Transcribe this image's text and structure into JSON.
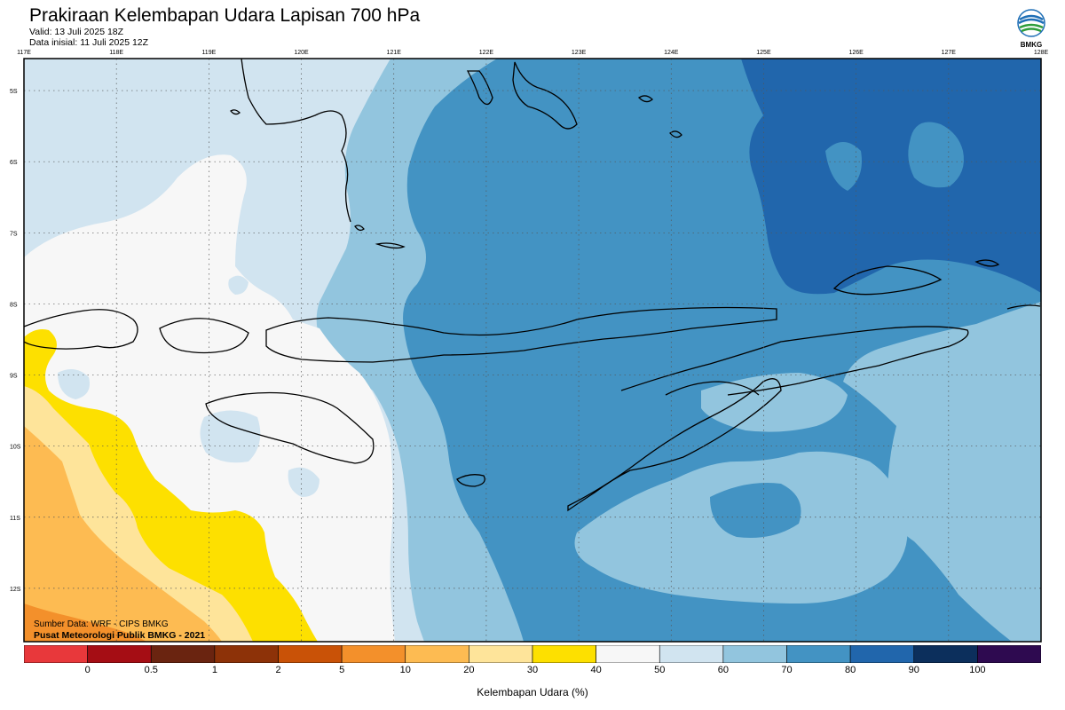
{
  "header": {
    "title": "Prakiraan Kelembapan Udara Lapisan 700 hPa",
    "valid": "Valid: 13 Juli 2025 18Z",
    "initial": "Data inisial: 11 Juli 2025 12Z"
  },
  "logo": {
    "icon": "bmkg-logo-icon",
    "text": "BMKG"
  },
  "map": {
    "lon_labels": [
      "117E",
      "118E",
      "119E",
      "120E",
      "121E",
      "122E",
      "123E",
      "124E",
      "125E",
      "126E",
      "127E",
      "128E"
    ],
    "lat_labels": [
      "5S",
      "6S",
      "7S",
      "8S",
      "9S",
      "10S",
      "11S",
      "12S"
    ],
    "grid": true
  },
  "source": {
    "line1": "Sumber Data: WRF - CIPS BMKG",
    "line2": "Pusat Meteorologi Publik BMKG - 2021"
  },
  "colorbar": {
    "title": "Kelembapan Udara (%)",
    "labels": [
      "0",
      "0.5",
      "1",
      "2",
      "5",
      "10",
      "20",
      "30",
      "40",
      "50",
      "60",
      "70",
      "80",
      "90",
      "100"
    ],
    "colors": [
      "#e8383b",
      "#a50d14",
      "#6a2410",
      "#8d3208",
      "#c95207",
      "#f3902b",
      "#fdbb52",
      "#fee49a",
      "#fde000",
      "#f7f7f7",
      "#d1e4f0",
      "#92c5de",
      "#4393c3",
      "#2166ac",
      "#0c2f5c",
      "#2e0a50"
    ],
    "classes": [
      {
        "label": "30-40",
        "color": "#fee49a"
      },
      {
        "label": "40-50",
        "color": "#fde000"
      },
      {
        "label": "50-60",
        "color": "#f7f7f7"
      },
      {
        "label": "60-70",
        "color": "#d1e4f0"
      },
      {
        "label": "70-80",
        "color": "#92c5de"
      },
      {
        "label": "80-90",
        "color": "#4393c3"
      },
      {
        "label": "90-100",
        "color": "#2166ac"
      }
    ]
  }
}
